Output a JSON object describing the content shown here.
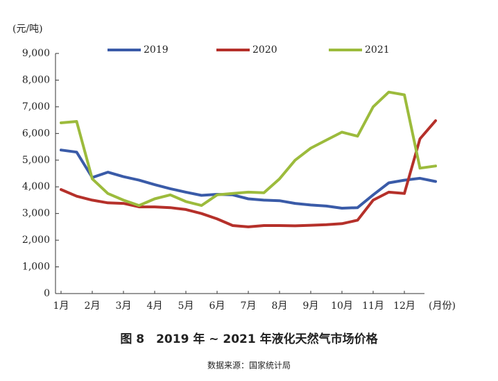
{
  "chart_data": {
    "type": "line",
    "title": "图 8　2019 年 ~ 2021 年液化天然气市场价格",
    "source": "数据来源：国家统计局",
    "y_label": "(元/吨)",
    "x_label": "(月份)",
    "x": [
      1,
      1.5,
      2,
      2.5,
      3,
      3.5,
      4,
      4.5,
      5,
      5.5,
      6,
      6.5,
      7,
      7.5,
      8,
      8.5,
      9,
      9.5,
      10,
      10.5,
      11,
      11.5,
      12,
      12.5,
      13
    ],
    "xlim": [
      1,
      13
    ],
    "xticks": [
      {
        "value": 1,
        "label": "1月"
      },
      {
        "value": 2,
        "label": "2月"
      },
      {
        "value": 3,
        "label": "3月"
      },
      {
        "value": 4,
        "label": "4月"
      },
      {
        "value": 5,
        "label": "5月"
      },
      {
        "value": 6,
        "label": "6月"
      },
      {
        "value": 7,
        "label": "7月"
      },
      {
        "value": 8,
        "label": "8月"
      },
      {
        "value": 9,
        "label": "9月"
      },
      {
        "value": 10,
        "label": "10月"
      },
      {
        "value": 11,
        "label": "11月"
      },
      {
        "value": 12,
        "label": "12月"
      }
    ],
    "ylim": [
      0,
      9000
    ],
    "yticks": [
      0,
      {
        "value": 1000,
        "label": "1,000"
      },
      {
        "value": 2000,
        "label": "2,000"
      },
      {
        "value": 3000,
        "label": "3,000"
      },
      {
        "value": 4000,
        "label": "4,000"
      },
      {
        "value": 5000,
        "label": "5,000"
      },
      {
        "value": 6000,
        "label": "6,000"
      },
      {
        "value": 7000,
        "label": "7,000"
      },
      {
        "value": 8000,
        "label": "8,000"
      },
      {
        "value": 9000,
        "label": "9,000"
      }
    ],
    "series": [
      {
        "name": "2019",
        "color": "#3a5ba8",
        "values": [
          5380,
          5300,
          4350,
          4550,
          4380,
          4250,
          4080,
          3930,
          3800,
          3680,
          3720,
          3700,
          3550,
          3500,
          3480,
          3380,
          3320,
          3280,
          3200,
          3220,
          3700,
          4150,
          4250,
          4320,
          4200
        ]
      },
      {
        "name": "2020",
        "color": "#b5302a",
        "values": [
          3900,
          3650,
          3500,
          3400,
          3380,
          3250,
          3250,
          3220,
          3150,
          3000,
          2800,
          2550,
          2500,
          2550,
          2550,
          2540,
          2560,
          2580,
          2620,
          2750,
          3500,
          3800,
          3750,
          5800,
          6480
        ]
      },
      {
        "name": "2021",
        "color": "#9cbb3c",
        "values": [
          6400,
          6450,
          4300,
          3750,
          3500,
          3300,
          3550,
          3700,
          3450,
          3300,
          3700,
          3750,
          3800,
          3780,
          4300,
          5000,
          5450,
          5750,
          6050,
          5900,
          7000,
          7550,
          7450,
          4700,
          4780
        ]
      }
    ]
  }
}
